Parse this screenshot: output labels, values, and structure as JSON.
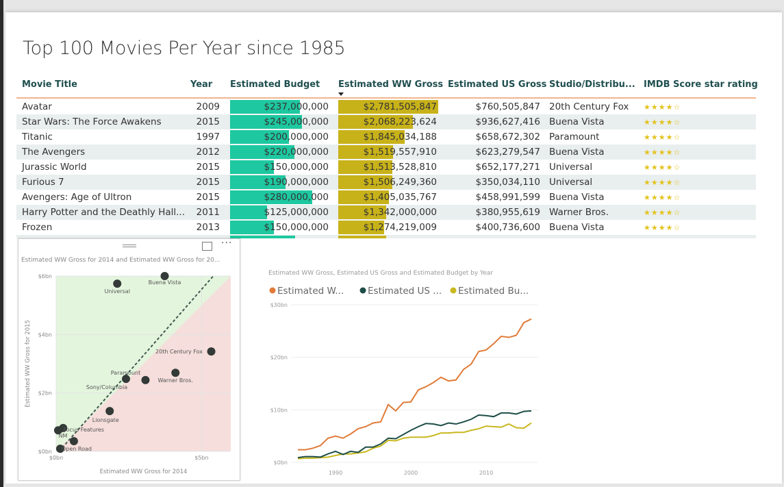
{
  "report_title": "Top 100 Movies Per Year since 1985",
  "table": {
    "columns": [
      "Movie Title",
      "Year",
      "Estimated Budget",
      "Estimated WW Gross",
      "Estimated US Gross",
      "Studio/Distribu...",
      "IMDB Score star rating"
    ],
    "sorted_column": "Estimated WW Gross",
    "budget_bar_color": "#1ec8a0",
    "ww_bar_color": "#c8b21a",
    "rows": [
      {
        "title": "Avatar",
        "year": "2009",
        "budget": "$237,000,000",
        "budget_value": 237000000,
        "ww": "$2,781,505,847",
        "ww_value": 2781505847,
        "us": "$760,505,847",
        "studio": "20th Century Fox",
        "stars": "★★★★☆",
        "rating": 4
      },
      {
        "title": "Star Wars: The Force Awakens",
        "year": "2015",
        "budget": "$245,000,000",
        "budget_value": 245000000,
        "ww": "$2,068,223,624",
        "ww_value": 2068223624,
        "us": "$936,627,416",
        "studio": "Buena Vista",
        "stars": "★★★★☆",
        "rating": 4
      },
      {
        "title": "Titanic",
        "year": "1997",
        "budget": "$200,000,000",
        "budget_value": 200000000,
        "ww": "$1,845,034,188",
        "ww_value": 1845034188,
        "us": "$658,672,302",
        "studio": "Paramount",
        "stars": "★★★★☆",
        "rating": 4
      },
      {
        "title": "The Avengers",
        "year": "2012",
        "budget": "$220,000,000",
        "budget_value": 220000000,
        "ww": "$1,519,557,910",
        "ww_value": 1519557910,
        "us": "$623,279,547",
        "studio": "Buena Vista",
        "stars": "★★★★☆",
        "rating": 4
      },
      {
        "title": "Jurassic World",
        "year": "2015",
        "budget": "$150,000,000",
        "budget_value": 150000000,
        "ww": "$1,513,528,810",
        "ww_value": 1513528810,
        "us": "$652,177,271",
        "studio": "Universal",
        "stars": "★★★★☆",
        "rating": 4
      },
      {
        "title": "Furious 7",
        "year": "2015",
        "budget": "$190,000,000",
        "budget_value": 190000000,
        "ww": "$1,506,249,360",
        "ww_value": 1506249360,
        "us": "$350,034,110",
        "studio": "Universal",
        "stars": "★★★★☆",
        "rating": 4
      },
      {
        "title": "Avengers: Age of Ultron",
        "year": "2015",
        "budget": "$280,000,000",
        "budget_value": 280000000,
        "ww": "$1,405,035,767",
        "ww_value": 1405035767,
        "us": "$458,991,599",
        "studio": "Buena Vista",
        "stars": "★★★★☆",
        "rating": 4
      },
      {
        "title": "Harry Potter and the Deathly Hall...",
        "year": "2011",
        "budget": "$125,000,000",
        "budget_value": 125000000,
        "ww": "$1,342,000,000",
        "ww_value": 1342000000,
        "us": "$380,955,619",
        "studio": "Warner Bros.",
        "stars": "★★★★☆",
        "rating": 4
      },
      {
        "title": "Frozen",
        "year": "2013",
        "budget": "$150,000,000",
        "budget_value": 150000000,
        "ww": "$1,274,219,009",
        "ww_value": 1274219009,
        "us": "$400,736,600",
        "studio": "Buena Vista",
        "stars": "★★★★☆",
        "rating": 4
      }
    ]
  },
  "chart_data": [
    {
      "type": "scatter",
      "title": "Estimated WW Gross for 2014 and Estimated WW Gross for 20...",
      "xlabel": "Estimated WW Gross for 2014",
      "ylabel": "Estimated WW Gross for 2015",
      "xlim": [
        0,
        6
      ],
      "ylim": [
        0,
        6
      ],
      "x_ticks": [
        "$0bn",
        "$5bn"
      ],
      "y_ticks": [
        "$0bn",
        "$2bn",
        "$4bn",
        "$6bn"
      ],
      "x_tick_values": [
        0,
        5
      ],
      "y_tick_values": [
        0,
        2,
        4,
        6
      ],
      "point_color": "#333a38",
      "above_region_color": "#e4f5dd",
      "below_region_color": "#f5dedb",
      "points": [
        {
          "label": "Buena Vista",
          "x": 3.73,
          "y": 6.0
        },
        {
          "label": "Universal",
          "x": 2.1,
          "y": 5.74
        },
        {
          "label": "20th Century Fox",
          "x": 5.33,
          "y": 3.42
        },
        {
          "label": "Warner Bros.",
          "x": 4.1,
          "y": 2.69
        },
        {
          "label": "Paramount",
          "x": 3.07,
          "y": 2.44
        },
        {
          "label": "Sony/Columbia",
          "x": 2.4,
          "y": 2.48
        },
        {
          "label": "Lionsgate",
          "x": 1.84,
          "y": 1.38
        },
        {
          "label": "Focus Features",
          "x": 0.24,
          "y": 0.8
        },
        {
          "label": "",
          "x": 0.07,
          "y": 0.72
        },
        {
          "label": "NM",
          "x": 0.61,
          "y": 0.35
        },
        {
          "label": "Open Road",
          "x": 0.14,
          "y": 0.09
        }
      ],
      "toolbar": {
        "drag_icon": "drag-handle-icon",
        "focus_icon": "focus-mode-icon",
        "more_icon": "more-options-icon"
      }
    },
    {
      "type": "line",
      "title": "Estimated WW Gross, Estimated US Gross and Estimated Budget by Year",
      "legend_position": "top-left",
      "ylim": [
        0,
        30
      ],
      "y_ticks": [
        "$0bn",
        "$10bn",
        "$20bn",
        "$30bn"
      ],
      "y_tick_values": [
        0,
        10,
        20,
        30
      ],
      "x_ticks": [
        "1990",
        "2000",
        "2010"
      ],
      "x_tick_values": [
        1990,
        2000,
        2010
      ],
      "grid": true,
      "x": [
        1985,
        1986,
        1987,
        1988,
        1989,
        1990,
        1991,
        1992,
        1993,
        1994,
        1995,
        1996,
        1997,
        1998,
        1999,
        2000,
        2001,
        2002,
        2003,
        2004,
        2005,
        2006,
        2007,
        2008,
        2009,
        2010,
        2011,
        2012,
        2013,
        2014,
        2015,
        2016
      ],
      "series": [
        {
          "name": "Estimated W...",
          "color": "#e07b39",
          "values": [
            2.4,
            2.4,
            2.7,
            3.2,
            4.6,
            5.0,
            4.6,
            5.4,
            6.4,
            6.8,
            7.5,
            7.7,
            11.0,
            9.8,
            11.4,
            11.5,
            13.8,
            14.4,
            15.2,
            16.2,
            15.5,
            15.7,
            17.7,
            18.7,
            21.1,
            21.4,
            22.6,
            24.0,
            23.8,
            24.2,
            26.6,
            27.3
          ]
        },
        {
          "name": "Estimated US ...",
          "color": "#1d4d47",
          "values": [
            0.9,
            1.1,
            1.1,
            1.0,
            1.6,
            2.1,
            1.5,
            2.1,
            1.9,
            2.9,
            2.9,
            3.5,
            4.6,
            4.5,
            5.3,
            6.1,
            6.8,
            7.4,
            7.3,
            7.0,
            7.5,
            7.3,
            7.7,
            8.2,
            9.0,
            8.9,
            8.7,
            9.4,
            9.4,
            9.2,
            9.7,
            9.8
          ]
        },
        {
          "name": "Estimated Bu...",
          "color": "#c9b81f",
          "values": [
            0.7,
            0.8,
            0.8,
            0.9,
            1.0,
            1.3,
            1.6,
            1.6,
            1.8,
            2.0,
            2.7,
            3.1,
            4.2,
            4.1,
            4.6,
            4.8,
            4.8,
            4.8,
            5.1,
            5.6,
            5.6,
            5.7,
            5.7,
            6.1,
            6.4,
            6.9,
            6.8,
            6.7,
            7.3,
            6.6,
            6.5,
            7.5
          ]
        }
      ]
    }
  ]
}
